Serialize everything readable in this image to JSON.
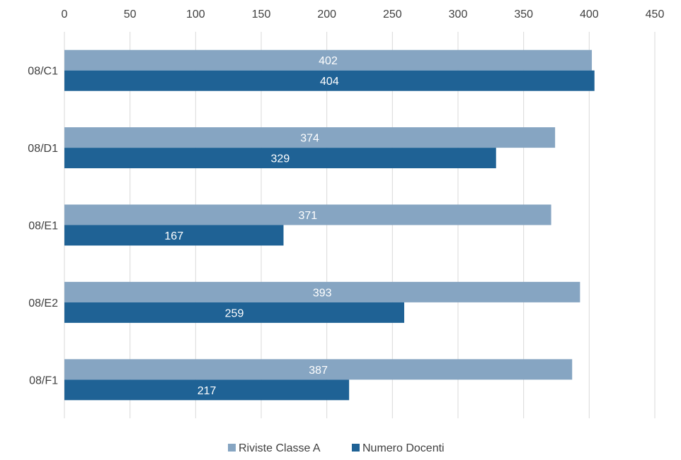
{
  "chart_data": {
    "type": "bar",
    "orientation": "horizontal",
    "categories": [
      "08/C1",
      "08/D1",
      "08/E1",
      "08/E2",
      "08/F1"
    ],
    "series": [
      {
        "name": "Riviste Classe A",
        "values": [
          402,
          374,
          371,
          393,
          387
        ],
        "color": "#86a5c2"
      },
      {
        "name": "Numero Docenti",
        "values": [
          404,
          329,
          167,
          259,
          217
        ],
        "color": "#1f6295"
      }
    ],
    "x_ticks": [
      0,
      50,
      100,
      150,
      200,
      250,
      300,
      350,
      400,
      450
    ],
    "xlim": [
      0,
      450
    ],
    "x_axis_position": "top",
    "grid": true,
    "data_labels": true,
    "legend_position": "bottom",
    "title": "",
    "xlabel": "",
    "ylabel": ""
  }
}
